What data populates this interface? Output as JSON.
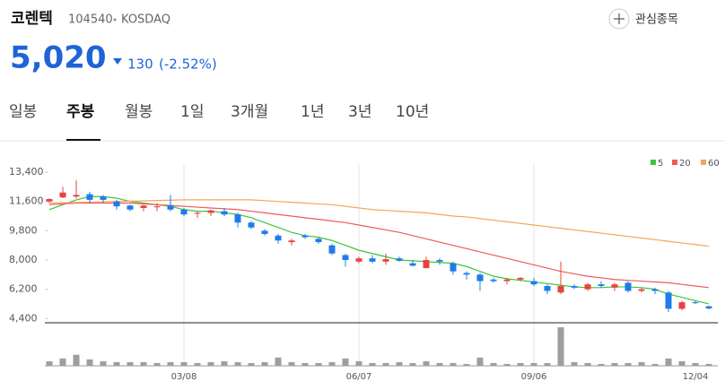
{
  "header": {
    "name": "코렌텍",
    "code": "104540",
    "market": "KOSDAQ",
    "price": "5,020",
    "change": "130",
    "change_pct": "(-2.52%)",
    "watch_button": "관심종목"
  },
  "tabs": {
    "items": [
      "일봉",
      "주봉",
      "월봉",
      "1일",
      "3개월",
      "1년",
      "3년",
      "10년"
    ],
    "active": 1
  },
  "chart_data": {
    "type": "candlestick",
    "categories": [
      null,
      null,
      null,
      null,
      null,
      null,
      null,
      null,
      null,
      null,
      "03/08",
      null,
      null,
      null,
      null,
      null,
      null,
      null,
      null,
      null,
      null,
      null,
      null,
      "06/07",
      null,
      null,
      null,
      null,
      null,
      null,
      null,
      null,
      null,
      null,
      null,
      null,
      "09/06",
      null,
      null,
      null,
      null,
      null,
      null,
      null,
      null,
      null,
      null,
      null,
      "12/04",
      null
    ],
    "open": [
      11600,
      11850,
      11900,
      12050,
      11900,
      11600,
      11350,
      11200,
      11250,
      11350,
      11100,
      10850,
      10900,
      11000,
      10800,
      10300,
      9800,
      9500,
      9100,
      9500,
      9300,
      8900,
      8300,
      7900,
      8100,
      7900,
      8100,
      7800,
      7500,
      8000,
      7800,
      7200,
      7100,
      6800,
      6700,
      6800,
      6700,
      6400,
      6000,
      6400,
      6200,
      6500,
      6300,
      6600,
      6100,
      6200,
      6000,
      5000,
      5400,
      5150
    ],
    "high": [
      11800,
      12500,
      12900,
      12200,
      12000,
      11700,
      11400,
      11400,
      11500,
      12000,
      11200,
      11000,
      11100,
      11200,
      10900,
      10400,
      9900,
      9600,
      9300,
      9600,
      9400,
      9000,
      8400,
      8200,
      8300,
      8400,
      8200,
      8000,
      8200,
      8100,
      7900,
      7300,
      7200,
      6900,
      6900,
      6950,
      6900,
      6500,
      7900,
      6500,
      6600,
      6700,
      6600,
      6700,
      6300,
      6300,
      6100,
      5500,
      5500,
      5200
    ],
    "low": [
      11500,
      11800,
      11800,
      11500,
      11500,
      11100,
      11000,
      11000,
      11000,
      11000,
      10700,
      10600,
      10700,
      10700,
      10000,
      9900,
      9500,
      9000,
      8900,
      9300,
      9000,
      8300,
      7600,
      7800,
      7800,
      7700,
      7900,
      7600,
      7500,
      7700,
      7100,
      6800,
      6100,
      6600,
      6500,
      6700,
      6400,
      5900,
      5900,
      6200,
      6100,
      6300,
      6100,
      6000,
      6000,
      5900,
      4800,
      4900,
      5300,
      4950
    ],
    "close": [
      11750,
      12150,
      12000,
      11700,
      11700,
      11300,
      11100,
      11350,
      11300,
      11100,
      10800,
      10900,
      11050,
      10800,
      10300,
      10000,
      9600,
      9200,
      9200,
      9400,
      9100,
      8400,
      8000,
      8100,
      7900,
      8050,
      7950,
      7650,
      8000,
      7900,
      7300,
      7100,
      6700,
      6700,
      6800,
      6900,
      6500,
      6100,
      6400,
      6300,
      6500,
      6400,
      6500,
      6100,
      6200,
      6100,
      5000,
      5400,
      5350,
      5020
    ],
    "up_color": "#e8413f",
    "down_color": "#1e7ce8",
    "moving_averages": [
      {
        "name": "5",
        "color": "#3cc43c",
        "values": [
          11100,
          11400,
          11700,
          11900,
          11900,
          11800,
          11600,
          11500,
          11400,
          11300,
          11100,
          11000,
          11000,
          10900,
          10800,
          10600,
          10300,
          10000,
          9700,
          9500,
          9400,
          9200,
          8900,
          8600,
          8400,
          8200,
          8000,
          7950,
          7900,
          7850,
          7800,
          7600,
          7300,
          7000,
          6850,
          6750,
          6650,
          6550,
          6450,
          6350,
          6300,
          6300,
          6350,
          6350,
          6300,
          6200,
          5900,
          5700,
          5500,
          5300
        ]
      },
      {
        "name": "20",
        "color": "#f0595c",
        "values": [
          11400,
          11450,
          11500,
          11500,
          11500,
          11500,
          11500,
          11450,
          11400,
          11350,
          11300,
          11250,
          11200,
          11150,
          11100,
          11000,
          10900,
          10800,
          10700,
          10600,
          10500,
          10400,
          10300,
          10150,
          10000,
          9850,
          9700,
          9500,
          9300,
          9100,
          8900,
          8700,
          8500,
          8300,
          8100,
          7900,
          7700,
          7500,
          7300,
          7150,
          7000,
          6900,
          6800,
          6750,
          6700,
          6650,
          6600,
          6500,
          6400,
          6300
        ]
      },
      {
        "name": "60",
        "color": "#f5a55a",
        "values": [
          11500,
          11520,
          11540,
          11560,
          11580,
          11600,
          11620,
          11640,
          11660,
          11680,
          11700,
          11700,
          11700,
          11700,
          11700,
          11700,
          11650,
          11600,
          11550,
          11500,
          11450,
          11400,
          11300,
          11200,
          11100,
          11050,
          11000,
          10950,
          10900,
          10800,
          10700,
          10650,
          10550,
          10450,
          10350,
          10250,
          10150,
          10050,
          9950,
          9850,
          9750,
          9650,
          9550,
          9450,
          9350,
          9250,
          9150,
          9050,
          8950,
          8850
        ]
      }
    ],
    "volume": {
      "color": "#9e9e9e",
      "ylim": [
        0,
        45
      ],
      "values": [
        5,
        8,
        12,
        7,
        5,
        4,
        4,
        4,
        3,
        4,
        4,
        3,
        4,
        5,
        4,
        3,
        4,
        9,
        4,
        3,
        3,
        4,
        8,
        5,
        3,
        3,
        4,
        3,
        5,
        3,
        3,
        2,
        9,
        3,
        2,
        3,
        3,
        3,
        42,
        4,
        3,
        2,
        3,
        3,
        4,
        2,
        8,
        5,
        3,
        2
      ]
    },
    "ylim": [
      4250,
      13900
    ],
    "yticks": [
      {
        "value": 13400,
        "label": "13,400"
      },
      {
        "value": 11600,
        "label": "11,600"
      },
      {
        "value": 9800,
        "label": "9,800"
      },
      {
        "value": 8000,
        "label": "8,000"
      },
      {
        "value": 6200,
        "label": "6,200"
      },
      {
        "value": 4400,
        "label": "4,400"
      }
    ],
    "legend": "top-right"
  }
}
